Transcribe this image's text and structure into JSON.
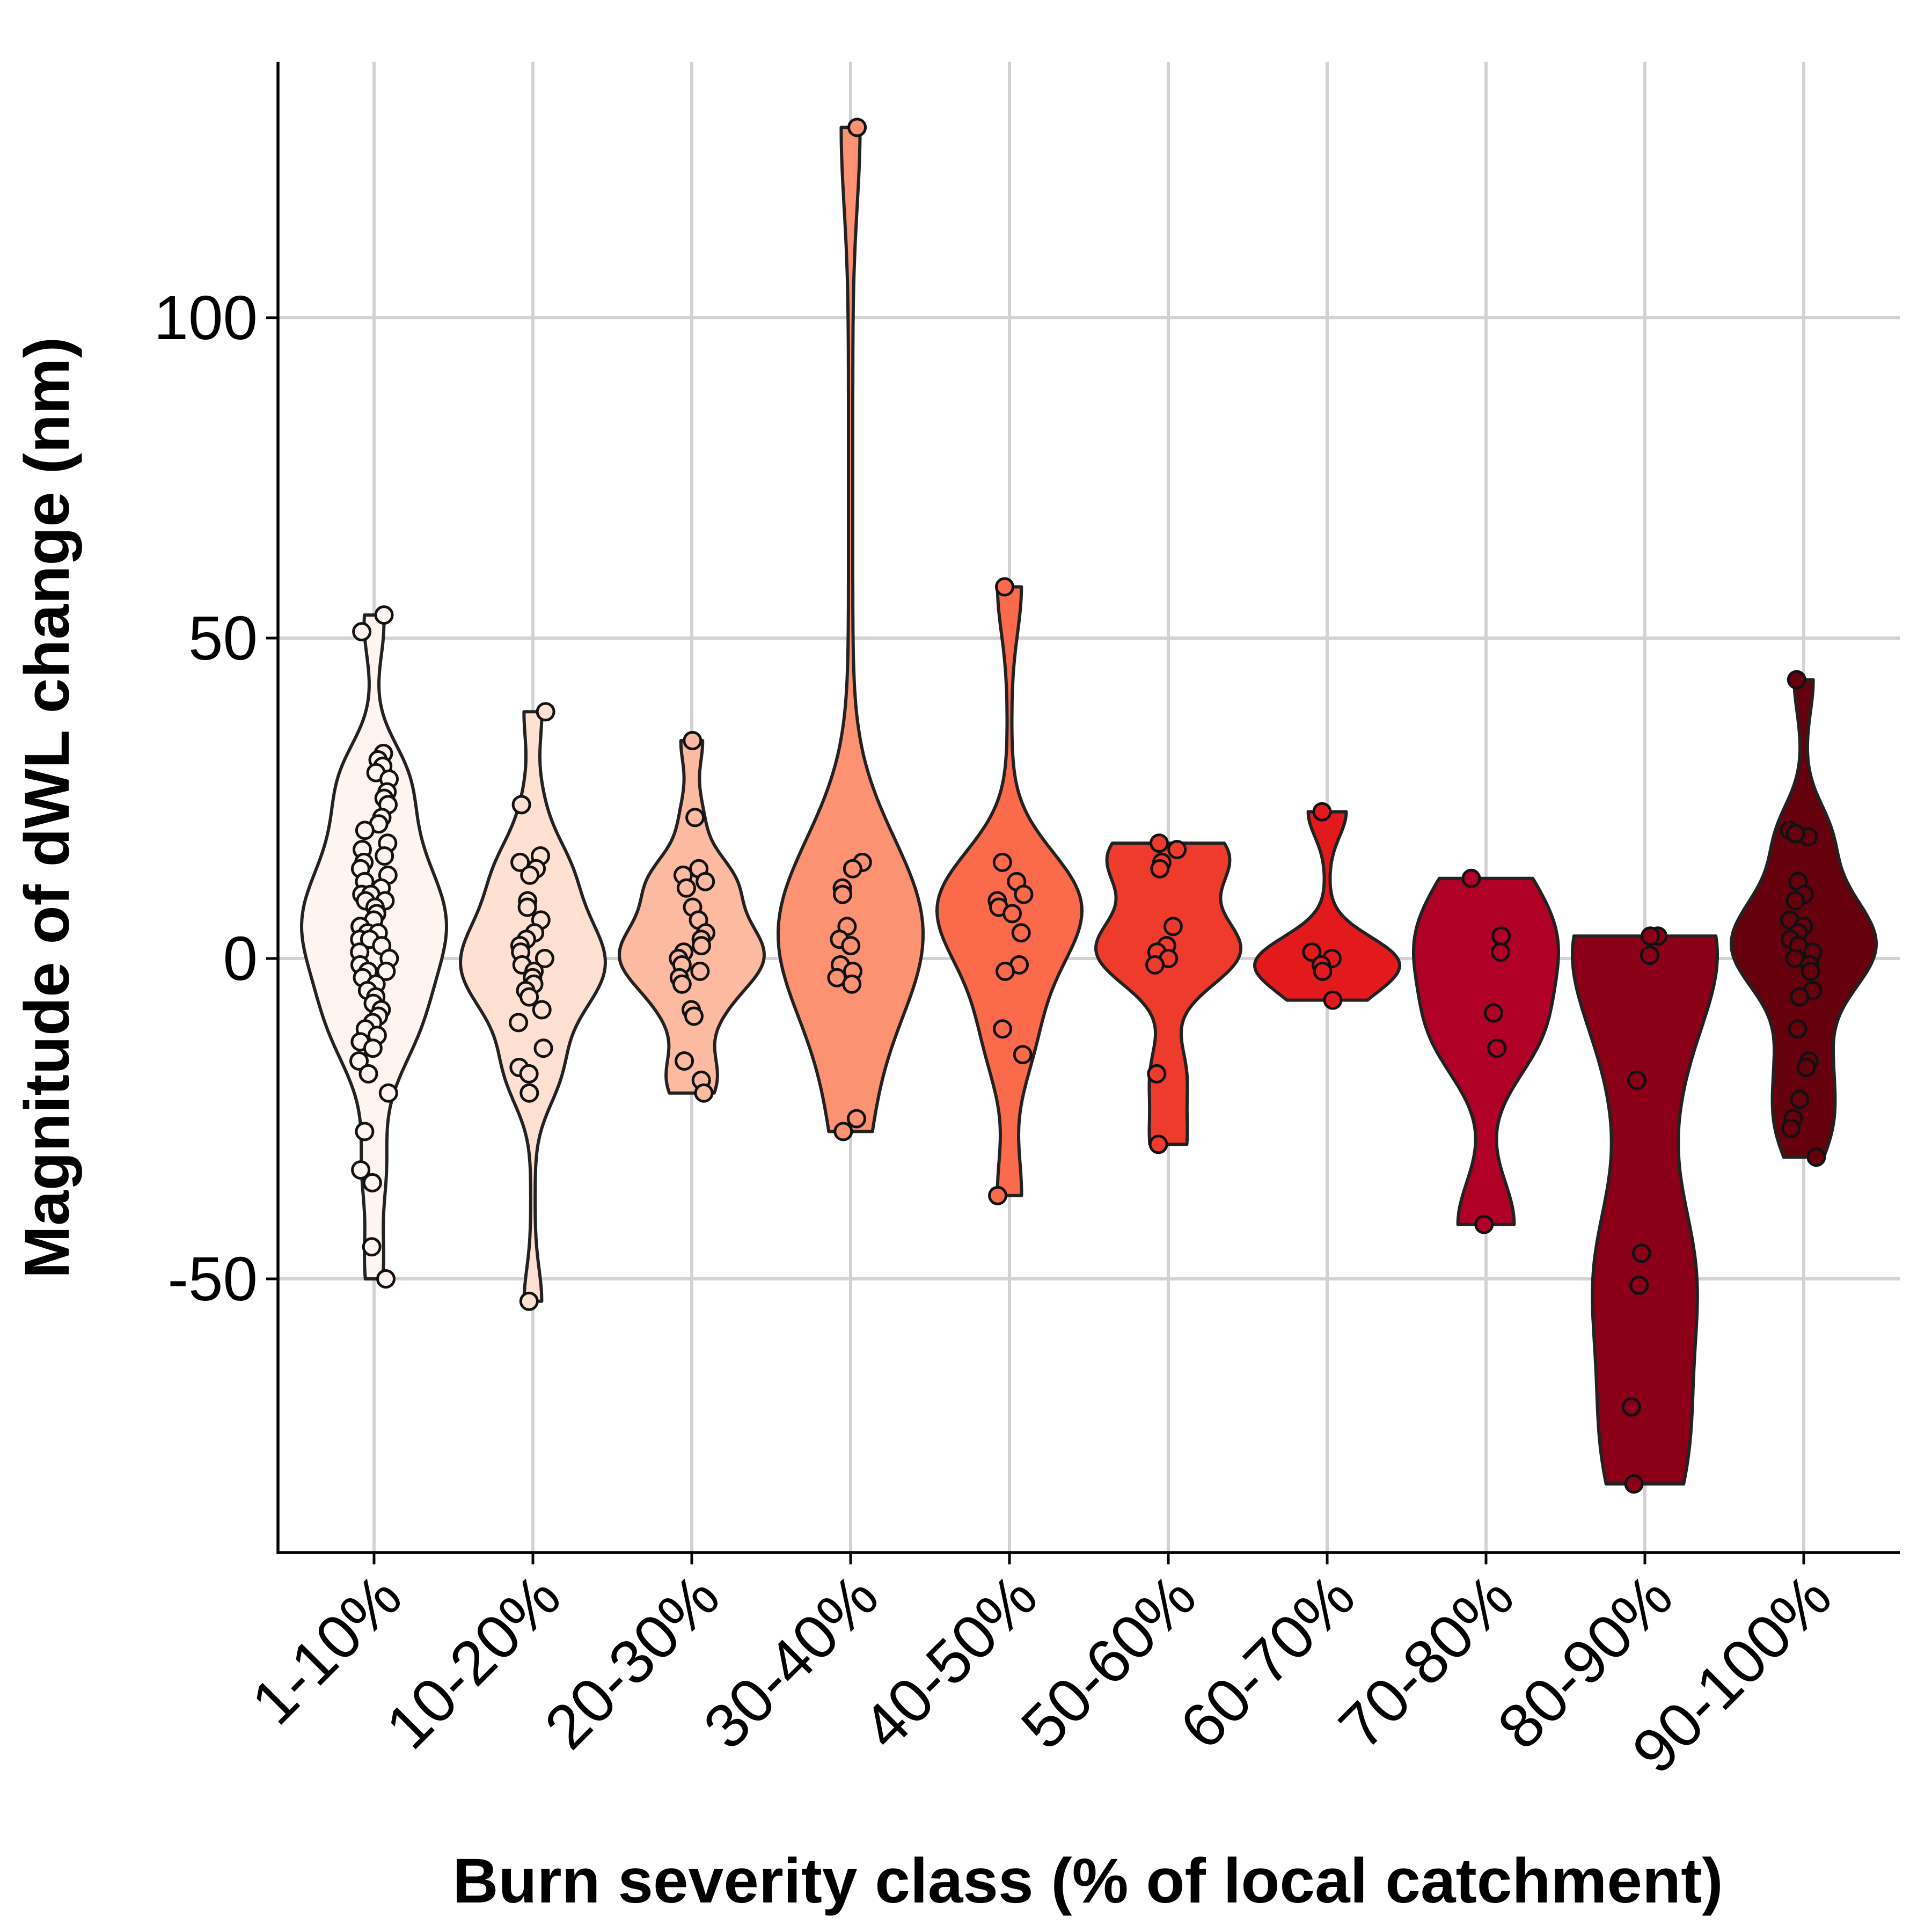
{
  "chart_data": {
    "type": "violin",
    "title": "",
    "xlabel": "Burn severity class (% of local catchment)",
    "ylabel": "Magnitude of dWL change (nm)",
    "ylim": [
      -92,
      140
    ],
    "yticks": [
      -50,
      0,
      50,
      100
    ],
    "ytick_labels": [
      "-50",
      "0",
      "50",
      "100"
    ],
    "grid": true,
    "legend": "none",
    "categories": [
      "1-10%",
      "10-20%",
      "20-30%",
      "30-40%",
      "40-50%",
      "50-60%",
      "60-70%",
      "70-80%",
      "80-90%",
      "90-100%"
    ],
    "fill_colors": [
      "#fff5f0",
      "#fee0d2",
      "#fcbba1",
      "#fc9272",
      "#fb6a4a",
      "#ef3b2c",
      "#e31a1c",
      "#b10026",
      "#8b0016",
      "#67000d"
    ],
    "series": [
      {
        "category": "1-10%",
        "points": [
          53.6,
          51,
          32,
          31,
          30,
          29,
          28,
          26,
          25,
          24,
          22,
          21,
          20,
          18,
          17,
          16,
          15,
          14,
          13,
          12,
          11,
          10,
          10,
          9,
          9,
          8,
          7,
          6,
          5,
          5,
          4,
          4,
          3,
          3,
          2,
          1,
          0,
          -1,
          -2,
          -2,
          -3,
          -4,
          -5,
          -6,
          -7,
          -8,
          -9,
          -10,
          -11,
          -12,
          -13,
          -14,
          -16,
          -18,
          -21,
          -27,
          -33,
          -35,
          -45,
          -50
        ]
      },
      {
        "category": "10-20%",
        "points": [
          38.5,
          24,
          16,
          15,
          14,
          13,
          9,
          8,
          6,
          4,
          3,
          2,
          1,
          0,
          -1,
          -2,
          -3,
          -4,
          -5,
          -6,
          -8,
          -10,
          -14,
          -17,
          -18,
          -21,
          -53.5
        ]
      },
      {
        "category": "20-30%",
        "points": [
          34,
          22,
          14,
          13,
          12,
          11,
          8,
          6,
          4,
          3,
          2,
          1,
          0,
          -1,
          -2,
          -3,
          -4,
          -8,
          -9,
          -16,
          -19,
          -21
        ]
      },
      {
        "category": "30-40%",
        "points": [
          129.7,
          15,
          14,
          11,
          10,
          5,
          3,
          2,
          -1,
          -2,
          -3,
          -4,
          -25,
          -27
        ]
      },
      {
        "category": "40-50%",
        "points": [
          58,
          15,
          12,
          10,
          9,
          8,
          7,
          4,
          -1,
          -2,
          -11,
          -15,
          -37
        ]
      },
      {
        "category": "50-60%",
        "points": [
          18,
          17,
          15,
          14,
          5,
          2,
          1,
          0,
          -1,
          -18,
          -29
        ]
      },
      {
        "category": "60-70%",
        "points": [
          22.9,
          1,
          0,
          -1,
          -2,
          -6.5
        ]
      },
      {
        "category": "70-80%",
        "points": [
          12.5,
          3.5,
          1,
          -8.5,
          -14,
          -41.5
        ]
      },
      {
        "category": "80-90%",
        "points": [
          3.5,
          3.5,
          0.5,
          -19,
          -46,
          -51,
          -70,
          -82
        ]
      },
      {
        "category": "90-100%",
        "points": [
          43.5,
          20,
          19,
          19.5,
          12,
          10,
          9,
          6,
          5,
          4,
          3,
          2,
          1,
          0,
          -1,
          -2,
          -5,
          -6,
          -11,
          -16,
          -17,
          -22,
          -25,
          -26.5,
          -31
        ]
      }
    ]
  }
}
